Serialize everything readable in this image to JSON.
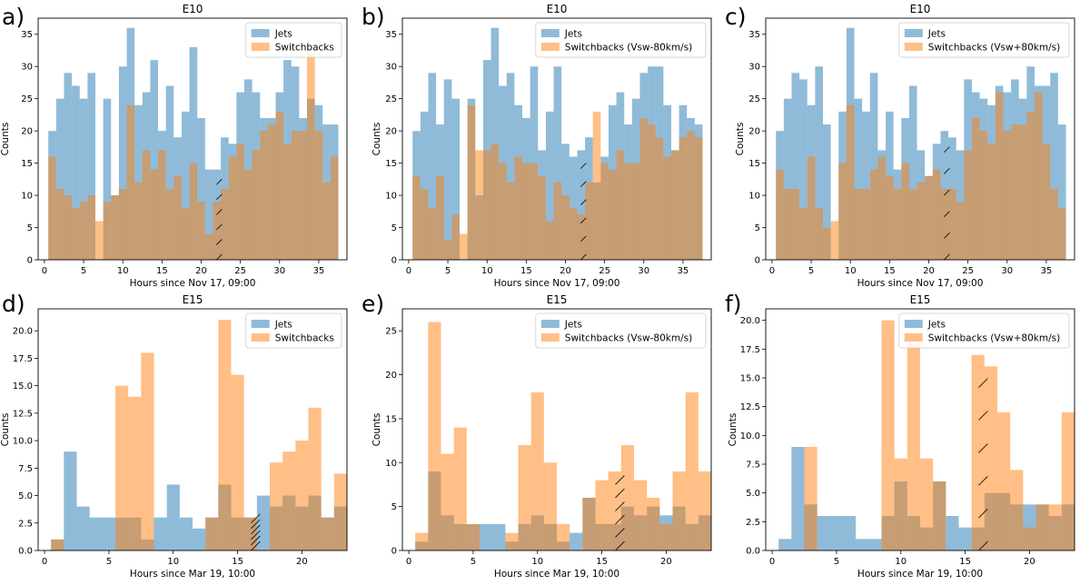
{
  "figure": {
    "colors": {
      "jets": "#1f77b4",
      "switchbacks": "#ff7f0e",
      "overlap": "#b7814b"
    }
  },
  "chart_data": [
    {
      "type": "bar",
      "letter": "a)",
      "title": "E10",
      "xlabel": "Hours since Nov 17, 09:00",
      "ylabel": "Counts",
      "xlim": [
        -0.8,
        38.6
      ],
      "ylim": [
        0,
        37.5
      ],
      "xticks": [
        0,
        5,
        10,
        15,
        20,
        25,
        30,
        35
      ],
      "yticks": [
        0,
        5,
        10,
        15,
        20,
        25,
        30,
        35
      ],
      "bin_start": 0.5,
      "bin_width": 1.0,
      "series": [
        {
          "name": "Jets",
          "values": [
            20,
            25,
            29,
            27,
            25,
            29,
            0,
            25,
            10,
            30,
            36,
            24,
            26,
            31,
            20,
            27,
            19,
            23,
            33,
            22,
            14,
            14,
            19,
            18,
            26,
            28,
            26,
            22,
            22,
            26,
            31,
            30,
            22,
            25,
            24,
            21,
            21
          ]
        },
        {
          "name": "Switchbacks",
          "values": [
            16,
            11,
            10,
            8,
            9,
            10,
            6,
            9,
            10,
            11,
            24,
            12,
            17,
            14,
            17,
            11,
            13,
            8,
            15,
            9,
            4,
            9,
            11,
            16,
            18,
            14,
            17,
            20,
            21,
            23,
            18,
            20,
            20,
            32,
            20,
            12,
            16
          ]
        }
      ],
      "gap_marker_x": 22.2,
      "legend": [
        "Jets",
        "Switchbacks"
      ],
      "legend_loc": "top-right"
    },
    {
      "type": "bar",
      "letter": "b)",
      "title": "E10",
      "xlabel": "Hours since Nov 17, 09:00",
      "ylabel": "Counts",
      "xlim": [
        -0.8,
        38.6
      ],
      "ylim": [
        0,
        37.5
      ],
      "xticks": [
        0,
        5,
        10,
        15,
        20,
        25,
        30,
        35
      ],
      "yticks": [
        0,
        5,
        10,
        15,
        20,
        25,
        30,
        35
      ],
      "bin_start": 0.5,
      "bin_width": 1.0,
      "series": [
        {
          "name": "Jets",
          "values": [
            20,
            23,
            29,
            21,
            28,
            25,
            0,
            25,
            10,
            31,
            36,
            27,
            29,
            24,
            22,
            30,
            17,
            23,
            30,
            18,
            16,
            17,
            19,
            12,
            16,
            24,
            26,
            21,
            25,
            29,
            30,
            30,
            24,
            17,
            24,
            22,
            21
          ]
        },
        {
          "name": "Switchbacks",
          "values": [
            13,
            11,
            8,
            13,
            3,
            7,
            4,
            24,
            17,
            17,
            18,
            15,
            12,
            16,
            15,
            15,
            13,
            6,
            12,
            10,
            8,
            7,
            12,
            23,
            15,
            14,
            17,
            15,
            15,
            22,
            21,
            19,
            16,
            17,
            19,
            20,
            19
          ]
        }
      ],
      "gap_marker_x": 22.2,
      "legend": [
        "Jets",
        "Switchbacks (Vsw-80km/s)"
      ],
      "legend_loc": "top-right"
    },
    {
      "type": "bar",
      "letter": "c)",
      "title": "E10",
      "xlabel": "Hours since Nov 17, 09:00",
      "ylabel": "Counts",
      "xlim": [
        -0.8,
        38.6
      ],
      "ylim": [
        0,
        37.5
      ],
      "xticks": [
        0,
        5,
        10,
        15,
        20,
        25,
        30,
        35
      ],
      "yticks": [
        0,
        5,
        10,
        15,
        20,
        25,
        30,
        35
      ],
      "bin_start": 0.5,
      "bin_width": 1.0,
      "series": [
        {
          "name": "Jets",
          "values": [
            20,
            25,
            29,
            28,
            24,
            30,
            21,
            0,
            23,
            36,
            25,
            23,
            29,
            17,
            23,
            14,
            22,
            27,
            17,
            13,
            18,
            20,
            19,
            17,
            28,
            26,
            25,
            24,
            27,
            26,
            28,
            25,
            30,
            27,
            27,
            29,
            21
          ]
        },
        {
          "name": "Switchbacks",
          "values": [
            14,
            11,
            11,
            8,
            16,
            8,
            5,
            6,
            15,
            24,
            11,
            11,
            14,
            16,
            13,
            11,
            15,
            11,
            12,
            13,
            14,
            11,
            11,
            9,
            17,
            22,
            20,
            18,
            26,
            20,
            21,
            21,
            23,
            26,
            18,
            11,
            8
          ]
        }
      ],
      "gap_marker_x": 22.2,
      "legend": [
        "Jets",
        "Switchbacks (Vsw+80km/s)"
      ],
      "legend_loc": "top-right"
    },
    {
      "type": "bar",
      "letter": "d)",
      "title": "E15",
      "xlabel": "Hours since Mar 19, 10:00",
      "ylabel": "Counts",
      "xlim": [
        -0.5,
        23.5
      ],
      "ylim": [
        0,
        22
      ],
      "xticks": [
        0,
        5,
        10,
        15,
        20
      ],
      "yticks": [
        0.0,
        2.5,
        5.0,
        7.5,
        10.0,
        12.5,
        15.0,
        17.5,
        20.0
      ],
      "bin_start": 0.5,
      "bin_width": 1.0,
      "series": [
        {
          "name": "Jets",
          "values": [
            1,
            9,
            4,
            3,
            3,
            3,
            3,
            1,
            3,
            6,
            3,
            2,
            3,
            6,
            3,
            3,
            5,
            4,
            5,
            4,
            5,
            3,
            4
          ]
        },
        {
          "name": "Switchbacks",
          "values": [
            1,
            0,
            0,
            0,
            0,
            15,
            14,
            18,
            0,
            0,
            0,
            0,
            3,
            21,
            16,
            3,
            0,
            8,
            9,
            10,
            13,
            3,
            7
          ]
        }
      ],
      "gap_marker_x": 16.3,
      "legend": [
        "Jets",
        "Switchbacks"
      ],
      "legend_loc": "top-right"
    },
    {
      "type": "bar",
      "letter": "e)",
      "title": "E15",
      "xlabel": "Hours since Mar 19, 10:00",
      "ylabel": "Counts",
      "xlim": [
        -0.5,
        23.5
      ],
      "ylim": [
        0,
        27.5
      ],
      "xticks": [
        0,
        5,
        10,
        15,
        20
      ],
      "yticks": [
        0,
        5,
        10,
        15,
        20,
        25
      ],
      "bin_start": 0.5,
      "bin_width": 1.0,
      "series": [
        {
          "name": "Jets",
          "values": [
            1,
            9,
            4,
            3,
            3,
            3,
            3,
            1,
            3,
            4,
            3,
            1,
            2,
            6,
            3,
            3,
            5,
            4,
            5,
            4,
            5,
            3,
            4
          ]
        },
        {
          "name": "Switchbacks",
          "values": [
            2,
            26,
            11,
            14,
            3,
            0,
            0,
            2,
            12,
            18,
            10,
            3,
            0,
            6,
            8,
            9,
            12,
            8,
            6,
            3,
            9,
            18,
            9
          ]
        }
      ],
      "gap_marker_x": 16.3,
      "legend": [
        "Jets",
        "Switchbacks (Vsw-80km/s)"
      ],
      "legend_loc": "top-right"
    },
    {
      "type": "bar",
      "letter": "f)",
      "title": "E15",
      "xlabel": "Hours since Mar 19, 10:00",
      "ylabel": "Counts",
      "xlim": [
        -0.5,
        23.5
      ],
      "ylim": [
        0,
        21
      ],
      "xticks": [
        0,
        5,
        10,
        15,
        20
      ],
      "yticks": [
        0.0,
        2.5,
        5.0,
        7.5,
        10.0,
        12.5,
        15.0,
        17.5,
        20.0
      ],
      "bin_start": 0.5,
      "bin_width": 1.0,
      "series": [
        {
          "name": "Jets",
          "values": [
            1,
            9,
            4,
            3,
            3,
            3,
            1,
            1,
            3,
            6,
            3,
            2,
            6,
            3,
            2,
            2,
            5,
            5,
            4,
            4,
            4,
            3,
            4
          ]
        },
        {
          "name": "Switchbacks",
          "values": [
            0,
            0,
            9,
            0,
            0,
            0,
            0,
            0,
            20,
            8,
            18,
            8,
            6,
            0,
            0,
            17,
            16,
            12,
            7,
            2,
            4,
            4,
            12
          ]
        }
      ],
      "gap_marker_x": 16.3,
      "legend": [
        "Jets",
        "Switchbacks (Vsw+80km/s)"
      ],
      "legend_loc": "top-right"
    }
  ]
}
